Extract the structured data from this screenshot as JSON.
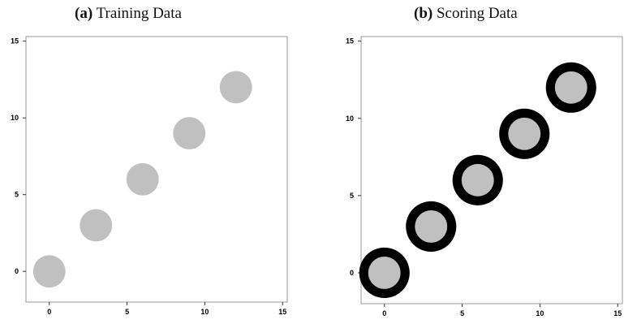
{
  "chart_data": [
    {
      "type": "scatter",
      "panel_letter": "(a)",
      "title": "Training Data",
      "xlabel": "",
      "ylabel": "",
      "xlim": [
        -1.5,
        15.3
      ],
      "ylim": [
        -2,
        15.3
      ],
      "xticks": [
        0,
        5,
        10,
        15
      ],
      "yticks": [
        0,
        5,
        10,
        15
      ],
      "grid": false,
      "fill_color": "#c0c0c0",
      "points": [
        {
          "x": 0,
          "y": 0,
          "ring": false
        },
        {
          "x": 3,
          "y": 3,
          "ring": false
        },
        {
          "x": 6,
          "y": 6,
          "ring": false
        },
        {
          "x": 9,
          "y": 9,
          "ring": false
        },
        {
          "x": 12,
          "y": 12,
          "ring": false
        }
      ]
    },
    {
      "type": "scatter",
      "panel_letter": "(b)",
      "title": "Scoring Data",
      "xlabel": "",
      "ylabel": "",
      "xlim": [
        -1.5,
        15.3
      ],
      "ylim": [
        -2,
        15.3
      ],
      "xticks": [
        0,
        5,
        10,
        15
      ],
      "yticks": [
        0,
        5,
        10,
        15
      ],
      "grid": false,
      "fill_color": "#c0c0c0",
      "ring_color": "#000000",
      "points": [
        {
          "x": 0,
          "y": 0,
          "ring": true
        },
        {
          "x": 3,
          "y": 3,
          "ring": true
        },
        {
          "x": 6,
          "y": 6,
          "ring": true
        },
        {
          "x": 9,
          "y": 9,
          "ring": true
        },
        {
          "x": 12,
          "y": 12,
          "ring": true
        }
      ]
    }
  ]
}
